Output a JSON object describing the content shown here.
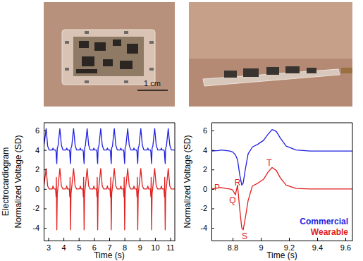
{
  "photos": {
    "scale_bar_label": "1 cm"
  },
  "chart_data": [
    {
      "type": "line",
      "row_label": "Electrocardiogram",
      "ylabel": "Normalized Voltage (SD)",
      "xlabel": "Time (s)",
      "xlim": [
        2.7,
        11.3
      ],
      "xticks": [
        3,
        4,
        5,
        6,
        7,
        8,
        9,
        10,
        11
      ],
      "ylim": [
        -5.3,
        6.8
      ],
      "yticks": [
        -4,
        -2,
        0,
        2,
        4,
        6
      ],
      "x": [
        2.7,
        2.86,
        2.96,
        3.06,
        3.26,
        3.31,
        3.36,
        3.48,
        3.51,
        3.53,
        3.56,
        3.59,
        3.64,
        3.76,
        3.86,
        3.96,
        4.16,
        4.21,
        4.26,
        4.38,
        4.41,
        4.43,
        4.46,
        4.49,
        4.54,
        4.66,
        4.76,
        4.86,
        5.05,
        5.1,
        5.15,
        5.27,
        5.3,
        5.32,
        5.35,
        5.38,
        5.43,
        5.55,
        5.65,
        5.75,
        5.94,
        5.99,
        6.04,
        6.16,
        6.19,
        6.21,
        6.24,
        6.27,
        6.32,
        6.44,
        6.54,
        6.64,
        6.83,
        6.88,
        6.93,
        7.05,
        7.08,
        7.1,
        7.13,
        7.16,
        7.21,
        7.33,
        7.43,
        7.53,
        7.71,
        7.76,
        7.81,
        7.93,
        7.96,
        7.98,
        8.01,
        8.04,
        8.09,
        8.21,
        8.31,
        8.41,
        8.57,
        8.62,
        8.67,
        8.79,
        8.82,
        8.84,
        8.87,
        8.9,
        8.95,
        9.07,
        9.17,
        9.27,
        9.48,
        9.53,
        9.58,
        9.7,
        9.73,
        9.75,
        9.78,
        9.81,
        9.86,
        9.98,
        10.08,
        10.18,
        10.37,
        10.42,
        10.47,
        10.59,
        10.62,
        10.64,
        10.67,
        10.7,
        10.75,
        10.87,
        10.97,
        11.07,
        11.3
      ],
      "series": [
        {
          "color": "#1f1fe0",
          "values": [
            4.2,
            6.2,
            4.4,
            4.0,
            4,
            4.2,
            4,
            4,
            3.8,
            3.2,
            2.6,
            4.2,
            4.4,
            6.2,
            4.5,
            4.0,
            4,
            4.2,
            4,
            4,
            3.8,
            3.2,
            2.6,
            4.2,
            4.4,
            6.2,
            4.5,
            4.0,
            4,
            4.2,
            4,
            4,
            3.8,
            3.2,
            2.6,
            4.2,
            4.4,
            6.2,
            4.5,
            4.0,
            4,
            4.2,
            4,
            4,
            3.8,
            3.2,
            2.6,
            4.2,
            4.4,
            6.2,
            4.5,
            4.0,
            4,
            4.2,
            4,
            4,
            3.8,
            3.2,
            2.6,
            4.2,
            4.4,
            6.2,
            4.5,
            4.0,
            4,
            4.2,
            4,
            4,
            3.8,
            3.2,
            2.6,
            4.2,
            4.4,
            6.2,
            4.5,
            4.0,
            4,
            4.2,
            4,
            4,
            3.8,
            3.2,
            2.6,
            4.2,
            4.4,
            6.2,
            4.5,
            4.0,
            4,
            4.2,
            4,
            4,
            3.8,
            3.2,
            2.6,
            4.2,
            4.4,
            6.2,
            4.5,
            4.0,
            4,
            4.2,
            4,
            4,
            3.8,
            3.2,
            2.6,
            4.2,
            4.4,
            6.2,
            4.5,
            4.0,
            4.0
          ]
        },
        {
          "color": "#e0201f",
          "values": [
            0.1,
            2.1,
            0.3,
            0,
            0,
            0.3,
            0,
            0,
            -0.8,
            1.2,
            -4.2,
            -0.5,
            0.2,
            2.1,
            0.3,
            0,
            0,
            0.3,
            0,
            0,
            -0.8,
            1.2,
            -4.2,
            -0.5,
            0.2,
            2.1,
            0.3,
            0,
            0,
            0.3,
            0,
            0,
            -0.8,
            1.2,
            -4.2,
            -0.5,
            0.2,
            2.1,
            0.3,
            0,
            0,
            0.3,
            0,
            0,
            -0.8,
            1.2,
            -4.2,
            -0.5,
            0.2,
            2.1,
            0.3,
            0,
            0,
            0.3,
            0,
            0,
            -0.8,
            1.2,
            -4.2,
            -0.5,
            0.2,
            2.1,
            0.3,
            0,
            0,
            0.3,
            0,
            0,
            -0.8,
            1.2,
            -4.2,
            -0.5,
            0.2,
            2.1,
            0.3,
            0,
            0,
            0.3,
            0,
            0,
            -0.8,
            1.2,
            -4.2,
            -0.5,
            0.2,
            2.1,
            0.3,
            0,
            0,
            0.3,
            0,
            0,
            -0.8,
            1.2,
            -4.2,
            -0.5,
            0.2,
            2.1,
            0.3,
            0,
            0,
            0.3,
            0,
            0,
            -0.8,
            1.2,
            -4.2,
            -0.5,
            0.2,
            2.1,
            0.3,
            0,
            0
          ]
        }
      ]
    },
    {
      "type": "line",
      "ylabel": "Normalized Voltage (SD)",
      "xlabel": "Time (s)",
      "xlim": [
        8.65,
        9.65
      ],
      "xticks": [
        8.8,
        9,
        9.2,
        9.4,
        9.6
      ],
      "ylim": [
        -5.3,
        6.8
      ],
      "yticks": [
        -4,
        -2,
        0,
        2,
        4,
        6
      ],
      "legend": "lower right",
      "x": [
        8.65,
        8.7,
        8.72,
        8.75,
        8.78,
        8.8,
        8.82,
        8.835,
        8.85,
        8.865,
        8.875,
        8.89,
        8.91,
        8.94,
        8.98,
        9.02,
        9.05,
        9.08,
        9.11,
        9.14,
        9.18,
        9.25,
        9.35,
        9.5,
        9.65
      ],
      "series": [
        {
          "name": "Commercial",
          "color": "#1f1fe0",
          "values": [
            3.9,
            3.95,
            4.0,
            3.95,
            3.9,
            3.8,
            3.5,
            3.0,
            1.5,
            0.4,
            0.6,
            2.0,
            3.6,
            4.3,
            4.6,
            5.0,
            5.6,
            6.1,
            5.9,
            5.2,
            4.4,
            4.0,
            3.9,
            3.9,
            3.9
          ]
        },
        {
          "name": "Wearable",
          "color": "#e0201f",
          "values": [
            0,
            0.1,
            0.15,
            0.05,
            0,
            -0.1,
            -0.6,
            0.4,
            -2.0,
            -4.0,
            -4.2,
            -3.0,
            -1.2,
            0.3,
            0.6,
            1.0,
            1.7,
            2.2,
            1.9,
            1.1,
            0.4,
            0.05,
            0,
            0,
            0
          ]
        }
      ],
      "annotations": [
        {
          "text": "P",
          "x": 8.69,
          "y": 0.1
        },
        {
          "text": "Q",
          "x": 8.8,
          "y": -1.2
        },
        {
          "text": "R",
          "x": 8.835,
          "y": 0.6
        },
        {
          "text": "S",
          "x": 8.885,
          "y": -4.9
        },
        {
          "text": "T",
          "x": 9.06,
          "y": 2.6
        }
      ]
    }
  ]
}
